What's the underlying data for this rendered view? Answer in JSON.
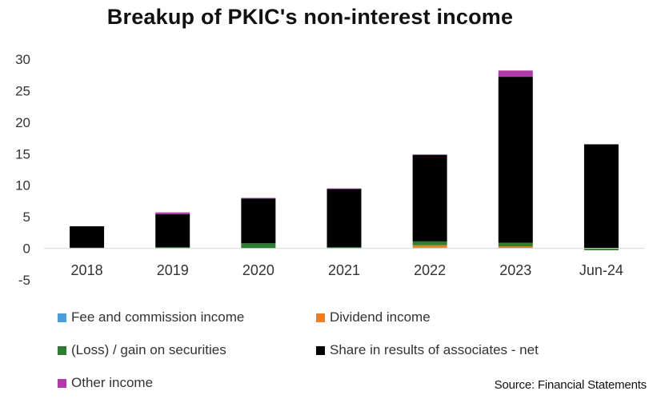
{
  "chart_data": {
    "type": "bar",
    "stacked": true,
    "title": "Breakup of PKIC's non-interest income",
    "xlabel": "",
    "ylabel": "",
    "ylim": [
      -5,
      30
    ],
    "yticks": [
      -5,
      0,
      5,
      10,
      15,
      20,
      25,
      30
    ],
    "grid": false,
    "legend_position": "bottom",
    "categories": [
      "2018",
      "2019",
      "2020",
      "2021",
      "2022",
      "2023",
      "Jun-24"
    ],
    "series": [
      {
        "name": "Fee and commission income",
        "color": "#4a9fd8",
        "values": [
          0,
          0,
          0,
          0,
          0.1,
          0,
          0
        ]
      },
      {
        "name": "Dividend income",
        "color": "#f07d1f",
        "values": [
          0,
          0,
          0,
          0,
          0.4,
          0.3,
          0
        ]
      },
      {
        "name": "(Loss) / gain on securities",
        "color": "#2e7d32",
        "values": [
          0.1,
          0.2,
          0.8,
          0.2,
          0.6,
          0.6,
          -0.3
        ]
      },
      {
        "name": "Share in results of associates - net",
        "color": "#000000",
        "values": [
          3.4,
          5.2,
          7.1,
          9.2,
          13.7,
          26.3,
          16.5
        ]
      },
      {
        "name": "Other income",
        "color": "#b03aa8",
        "values": [
          0,
          0.3,
          0.1,
          0.1,
          0.1,
          1.0,
          0
        ]
      }
    ]
  },
  "source": "Source: Financial Statements"
}
